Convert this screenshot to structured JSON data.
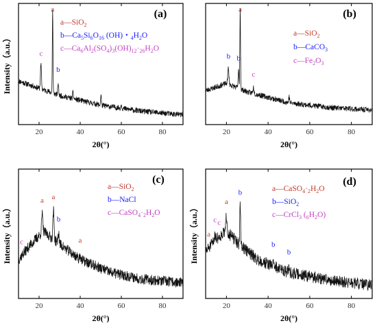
{
  "colors": {
    "a": "#c0392b",
    "b": "#1a1aff",
    "c": "#c040c0",
    "trace": "#111111"
  },
  "chart_data": [
    {
      "type": "line",
      "panel": "(a)",
      "xlabel": "2θ(°)",
      "ylabel": "Intensity（a.u.）",
      "xlim": [
        10,
        90
      ],
      "x_ticks": [
        20,
        40,
        60,
        80
      ],
      "y_ticks_shown": false,
      "legend": [
        {
          "key": "a",
          "text": "a—SiO",
          "sub": "2",
          "rest": ""
        },
        {
          "key": "b",
          "text": "b—Ca",
          "sub": "5",
          "rest": "Si6O16 (OH)・4H2O",
          "full": "b—Ca5Si6O16 (OH)・4H2O"
        },
        {
          "key": "c",
          "text": "c—Ca6Al2(SO4)3(OH)12·26H2O",
          "full": "c—Ca6Al2(SO4)3(OH)12·26H2O"
        }
      ],
      "peak_labels": [
        {
          "letter": "a",
          "x": 26.6
        },
        {
          "letter": "c",
          "x": 21.0
        },
        {
          "letter": "b",
          "x": 29.3
        }
      ],
      "baseline": [
        [
          10,
          0.36
        ],
        [
          20,
          0.3
        ],
        [
          30,
          0.24
        ],
        [
          50,
          0.16
        ],
        [
          70,
          0.11
        ],
        [
          90,
          0.08
        ]
      ],
      "peaks": [
        [
          20.9,
          0.2,
          0.35
        ],
        [
          26.6,
          0.7,
          0.22
        ],
        [
          29.3,
          0.1,
          0.3
        ],
        [
          36.5,
          0.05,
          0.3
        ],
        [
          50.1,
          0.09,
          0.25
        ],
        [
          60.0,
          0.03,
          0.3
        ]
      ],
      "noise": 0.022,
      "seed": 11
    },
    {
      "type": "line",
      "panel": "(b)",
      "xlabel": "2θ(°)",
      "ylabel": "",
      "xlim": [
        10,
        90
      ],
      "x_ticks": [
        20,
        40,
        60,
        80
      ],
      "y_ticks_shown": false,
      "legend": [
        {
          "key": "a",
          "full": "a—SiO2"
        },
        {
          "key": "b",
          "full": "b—CaCO3"
        },
        {
          "key": "c",
          "full": "c—Fe2O3"
        }
      ],
      "peak_labels": [
        {
          "letter": "a",
          "x": 26.6
        },
        {
          "letter": "b",
          "x": 21.0
        },
        {
          "letter": "b",
          "x": 25.8
        },
        {
          "letter": "c",
          "x": 33.0
        }
      ],
      "baseline": [
        [
          10,
          0.28
        ],
        [
          20,
          0.34
        ],
        [
          30,
          0.27
        ],
        [
          50,
          0.18
        ],
        [
          70,
          0.14
        ],
        [
          90,
          0.12
        ]
      ],
      "peaks": [
        [
          20.9,
          0.13,
          0.4
        ],
        [
          26.6,
          0.68,
          0.22
        ],
        [
          25.8,
          0.14,
          0.3
        ],
        [
          33.0,
          0.05,
          0.4
        ],
        [
          50.1,
          0.05,
          0.3
        ]
      ],
      "noise": 0.022,
      "seed": 23
    },
    {
      "type": "line",
      "panel": "(c)",
      "xlabel": "2θ(°)",
      "ylabel": "Intensity（a.u.）",
      "xlim": [
        10,
        90
      ],
      "x_ticks": [
        20,
        40,
        60,
        80
      ],
      "y_ticks_shown": false,
      "legend": [
        {
          "key": "a",
          "full": "a—SiO2"
        },
        {
          "key": "b",
          "full": "b—NaCl"
        },
        {
          "key": "c",
          "full": "c—CaSO4·2H2O"
        }
      ],
      "peak_labels": [
        {
          "letter": "a",
          "x": 21.5
        },
        {
          "letter": "a",
          "x": 27.0
        },
        {
          "letter": "b",
          "x": 29.5
        },
        {
          "letter": "c",
          "x": 11.5
        },
        {
          "letter": "a",
          "x": 40.0
        }
      ],
      "baseline": [
        [
          10,
          0.3
        ],
        [
          15,
          0.4
        ],
        [
          22,
          0.52
        ],
        [
          30,
          0.42
        ],
        [
          40,
          0.3
        ],
        [
          55,
          0.2
        ],
        [
          70,
          0.15
        ],
        [
          90,
          0.12
        ]
      ],
      "peaks": [
        [
          21.5,
          0.14,
          0.4
        ],
        [
          27.0,
          0.22,
          0.4
        ],
        [
          29.5,
          0.08,
          0.4
        ],
        [
          40.0,
          0.04,
          0.4
        ]
      ],
      "noise": 0.04,
      "seed": 37
    },
    {
      "type": "line",
      "panel": "(d)",
      "xlabel": "2θ(°)",
      "ylabel": "Intensity（a.u.）",
      "xlim": [
        10,
        90
      ],
      "x_ticks": [
        20,
        40,
        60,
        80
      ],
      "y_ticks_shown": false,
      "legend": [
        {
          "key": "a",
          "full": "a—CaSO4·2H2O"
        },
        {
          "key": "b",
          "full": "b—SiO2"
        },
        {
          "key": "c",
          "full": "c—CrCl3 (6H2O)"
        }
      ],
      "peak_labels": [
        {
          "letter": "a",
          "x": 11.5
        },
        {
          "letter": "c",
          "x": 14.5
        },
        {
          "letter": "c",
          "x": 16.5
        },
        {
          "letter": "a",
          "x": 20.0
        },
        {
          "letter": "b",
          "x": 26.6
        },
        {
          "letter": "b",
          "x": 42.5
        },
        {
          "letter": "b",
          "x": 50.0
        }
      ],
      "baseline": [
        [
          10,
          0.36
        ],
        [
          15,
          0.46
        ],
        [
          20,
          0.52
        ],
        [
          26,
          0.42
        ],
        [
          35,
          0.3
        ],
        [
          50,
          0.2
        ],
        [
          70,
          0.14
        ],
        [
          90,
          0.1
        ]
      ],
      "peaks": [
        [
          14.5,
          0.05,
          0.4
        ],
        [
          20.0,
          0.12,
          0.4
        ],
        [
          26.6,
          0.3,
          0.3
        ],
        [
          42.5,
          0.06,
          0.3
        ],
        [
          50.0,
          0.05,
          0.3
        ]
      ],
      "noise": 0.045,
      "seed": 51
    }
  ]
}
